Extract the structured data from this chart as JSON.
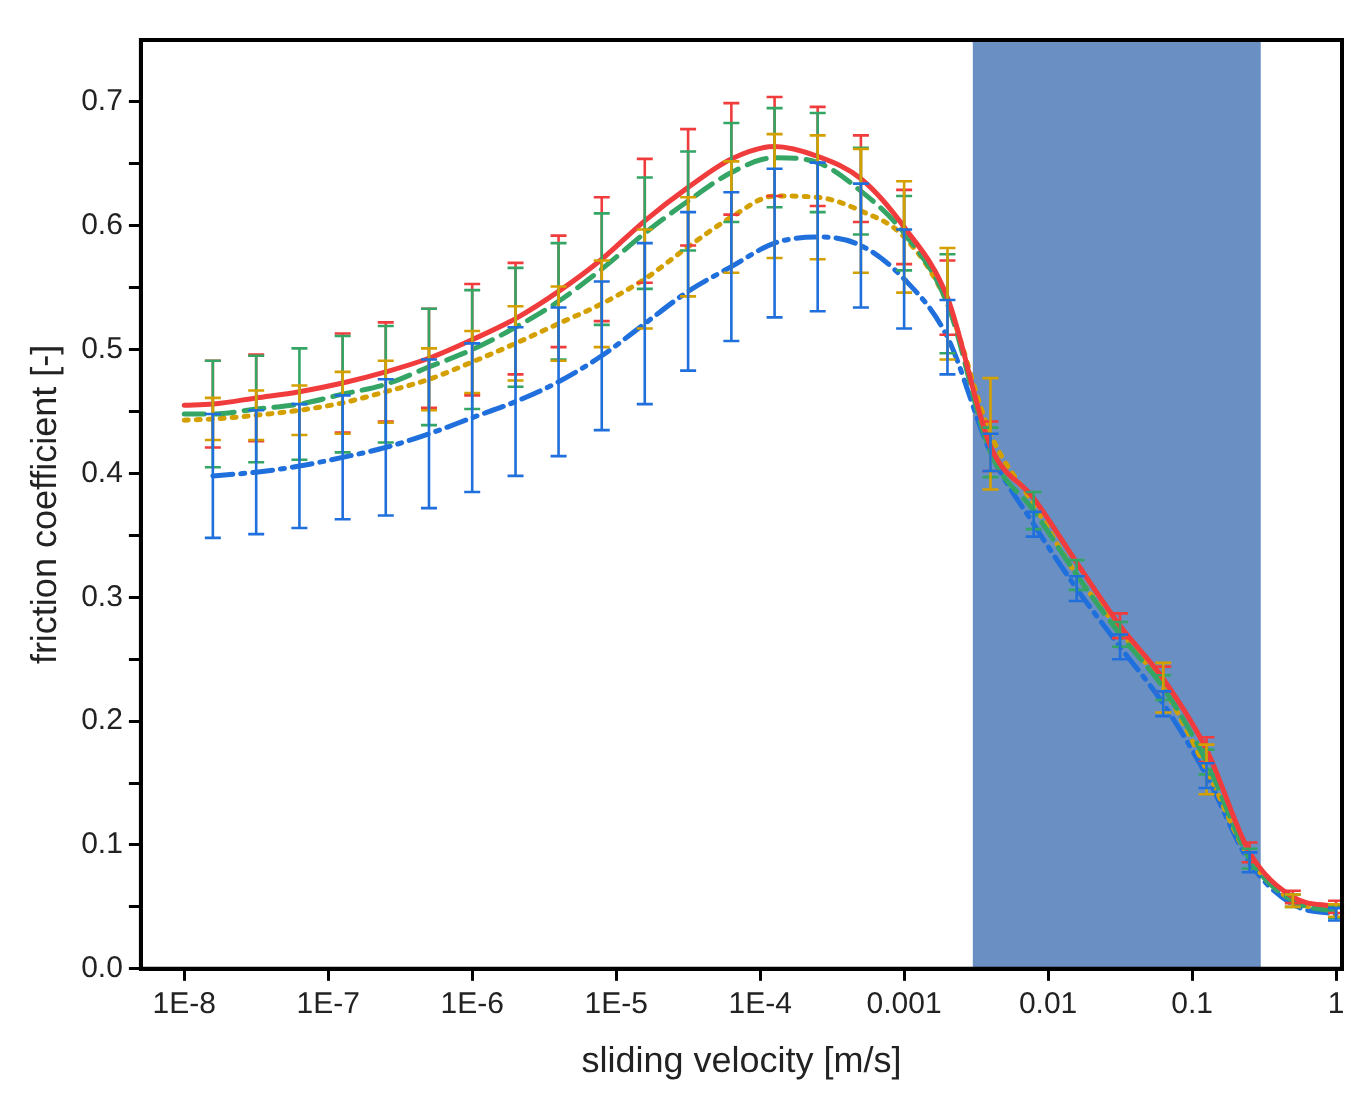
{
  "chart_data": {
    "type": "line",
    "xlabel": "sliding velocity [m/s]",
    "ylabel": "friction coefficient [-]",
    "log": "x",
    "grid": false,
    "legend": false,
    "marker": "none",
    "x": [
      1e-08,
      1.58e-08,
      3.16e-08,
      6.31e-08,
      1.26e-07,
      2.51e-07,
      5.01e-07,
      1e-06,
      2e-06,
      3.98e-06,
      7.94e-06,
      1.58e-05,
      3.16e-05,
      6.31e-05,
      0.000126,
      0.000251,
      0.000501,
      0.001,
      0.002,
      0.00398,
      0.00794,
      0.0158,
      0.0316,
      0.0631,
      0.126,
      0.251,
      0.501,
      1
    ],
    "xlim": [
      5e-09,
      1.1
    ],
    "xticks": [
      {
        "value": 1e-08,
        "label": "1E-8"
      },
      {
        "value": 1e-07,
        "label": "1E-7"
      },
      {
        "value": 1e-06,
        "label": "1E-6"
      },
      {
        "value": 1e-05,
        "label": "1E-5"
      },
      {
        "value": 0.0001,
        "label": "1E-4"
      },
      {
        "value": 0.001,
        "label": "0.001"
      },
      {
        "value": 0.01,
        "label": "0.01"
      },
      {
        "value": 0.1,
        "label": "0.1"
      },
      {
        "value": 1,
        "label": "1"
      }
    ],
    "ylim": [
      0,
      0.75
    ],
    "yticks": [
      {
        "value": 0,
        "label": "0.0"
      },
      {
        "value": 0.05,
        "label": null
      },
      0.1,
      {
        "value": 0.15,
        "label": null
      },
      0.2,
      {
        "value": 0.25,
        "label": null
      },
      0.3,
      {
        "value": 0.35,
        "label": null
      },
      0.4,
      {
        "value": 0.45,
        "label": null
      },
      0.5,
      {
        "value": 0.55,
        "label": null
      },
      0.6,
      {
        "value": 0.65,
        "label": null
      },
      0.7
    ],
    "bands": [
      {
        "axis": "x",
        "from": 0.003,
        "to": 0.3,
        "color": "#6a8fc2"
      }
    ],
    "series": [
      {
        "color": "#f03c3c",
        "line_style": "solid",
        "values": [
          0.455,
          0.456,
          0.461,
          0.466,
          0.473,
          0.482,
          0.493,
          0.508,
          0.525,
          0.547,
          0.573,
          0.604,
          0.631,
          0.654,
          0.664,
          0.656,
          0.638,
          0.599,
          0.542,
          0.422,
          0.38,
          0.328,
          0.277,
          0.234,
          0.177,
          0.094,
          0.058,
          0.05
        ],
        "errors": [
          null,
          0.035,
          0.035,
          null,
          0.04,
          0.04,
          0.04,
          0.045,
          0.045,
          0.045,
          0.05,
          0.05,
          0.047,
          0.045,
          0.04,
          0.04,
          0.035,
          0.03,
          0.03,
          0.02,
          null,
          null,
          0.01,
          0.01,
          0.01,
          0.008,
          0.005,
          0.005
        ]
      },
      {
        "color": "#35a565",
        "line_style": "dashed",
        "values": [
          0.448,
          0.448,
          0.452,
          0.456,
          0.464,
          0.472,
          0.486,
          0.5,
          0.518,
          0.539,
          0.565,
          0.594,
          0.62,
          0.643,
          0.655,
          0.651,
          0.628,
          0.594,
          0.537,
          0.417,
          0.37,
          0.318,
          0.27,
          0.227,
          0.167,
          0.089,
          0.055,
          0.046
        ],
        "errors": [
          null,
          0.043,
          0.043,
          0.045,
          0.047,
          0.047,
          0.047,
          0.048,
          0.048,
          0.047,
          0.045,
          0.045,
          0.04,
          0.04,
          0.04,
          0.04,
          0.035,
          0.03,
          0.04,
          0.02,
          0.015,
          0.012,
          0.01,
          0.01,
          0.01,
          0.008,
          0.005,
          0.005
        ]
      },
      {
        "color": "#d4a000",
        "line_style": "dotted",
        "values": [
          0.443,
          0.444,
          0.447,
          0.451,
          0.457,
          0.466,
          0.476,
          0.49,
          0.505,
          0.521,
          0.537,
          0.557,
          0.583,
          0.607,
          0.624,
          0.623,
          0.612,
          0.591,
          0.537,
          0.432,
          0.375,
          0.318,
          0.273,
          0.227,
          0.161,
          0.089,
          0.055,
          0.047
        ],
        "errors": [
          null,
          0.017,
          0.02,
          0.02,
          0.025,
          0.025,
          0.025,
          0.025,
          0.03,
          0.03,
          0.035,
          0.04,
          0.04,
          0.045,
          0.05,
          0.05,
          0.05,
          0.045,
          0.045,
          0.045,
          null,
          null,
          null,
          0.02,
          0.02,
          null,
          0.005,
          0.005
        ]
      },
      {
        "color": "#1f6fdc",
        "line_style": "dashdot",
        "values": [
          null,
          0.398,
          0.401,
          0.406,
          0.413,
          0.421,
          0.432,
          0.445,
          0.458,
          0.474,
          0.495,
          0.521,
          0.547,
          0.567,
          0.586,
          0.591,
          0.584,
          0.557,
          0.51,
          0.417,
          0.359,
          0.307,
          0.26,
          0.214,
          0.156,
          0.086,
          0.052,
          0.044
        ],
        "errors": [
          null,
          0.05,
          0.05,
          0.05,
          0.05,
          0.055,
          0.06,
          0.06,
          0.06,
          0.06,
          0.06,
          0.065,
          0.064,
          0.06,
          0.06,
          0.06,
          0.05,
          0.04,
          0.03,
          0.015,
          0.01,
          0.01,
          0.01,
          0.01,
          0.01,
          0.008,
          null,
          0.005
        ]
      }
    ]
  }
}
